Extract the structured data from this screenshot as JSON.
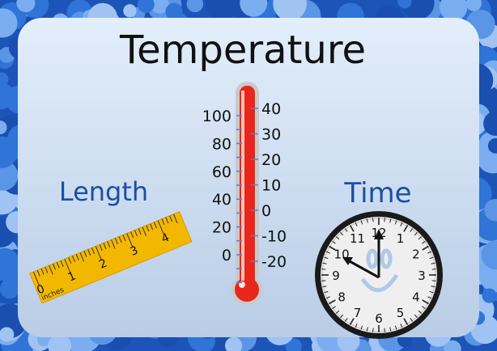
{
  "title": "Temperature",
  "length_label": "Length",
  "time_label": "Time",
  "thermometer": {
    "fahrenheit_labels": [
      "100",
      "80",
      "60",
      "40",
      "20",
      "0"
    ],
    "celsius_labels": [
      "40",
      "30",
      "20",
      "10",
      "0",
      "-10",
      "-20"
    ],
    "fill_color": "#e8261c"
  },
  "ruler": {
    "numbers": [
      "0",
      "1",
      "2",
      "3",
      "4"
    ],
    "unit": "inches",
    "color": "#f2b800"
  },
  "clock": {
    "numbers": [
      "12",
      "1",
      "2",
      "3",
      "4",
      "5",
      "6",
      "7",
      "8",
      "9",
      "10",
      "11"
    ],
    "time_shown": "10:00"
  },
  "colors": {
    "frame": "#1f5fc4",
    "background": "#dbe8f8",
    "heading_blue": "#1b4fa0"
  }
}
